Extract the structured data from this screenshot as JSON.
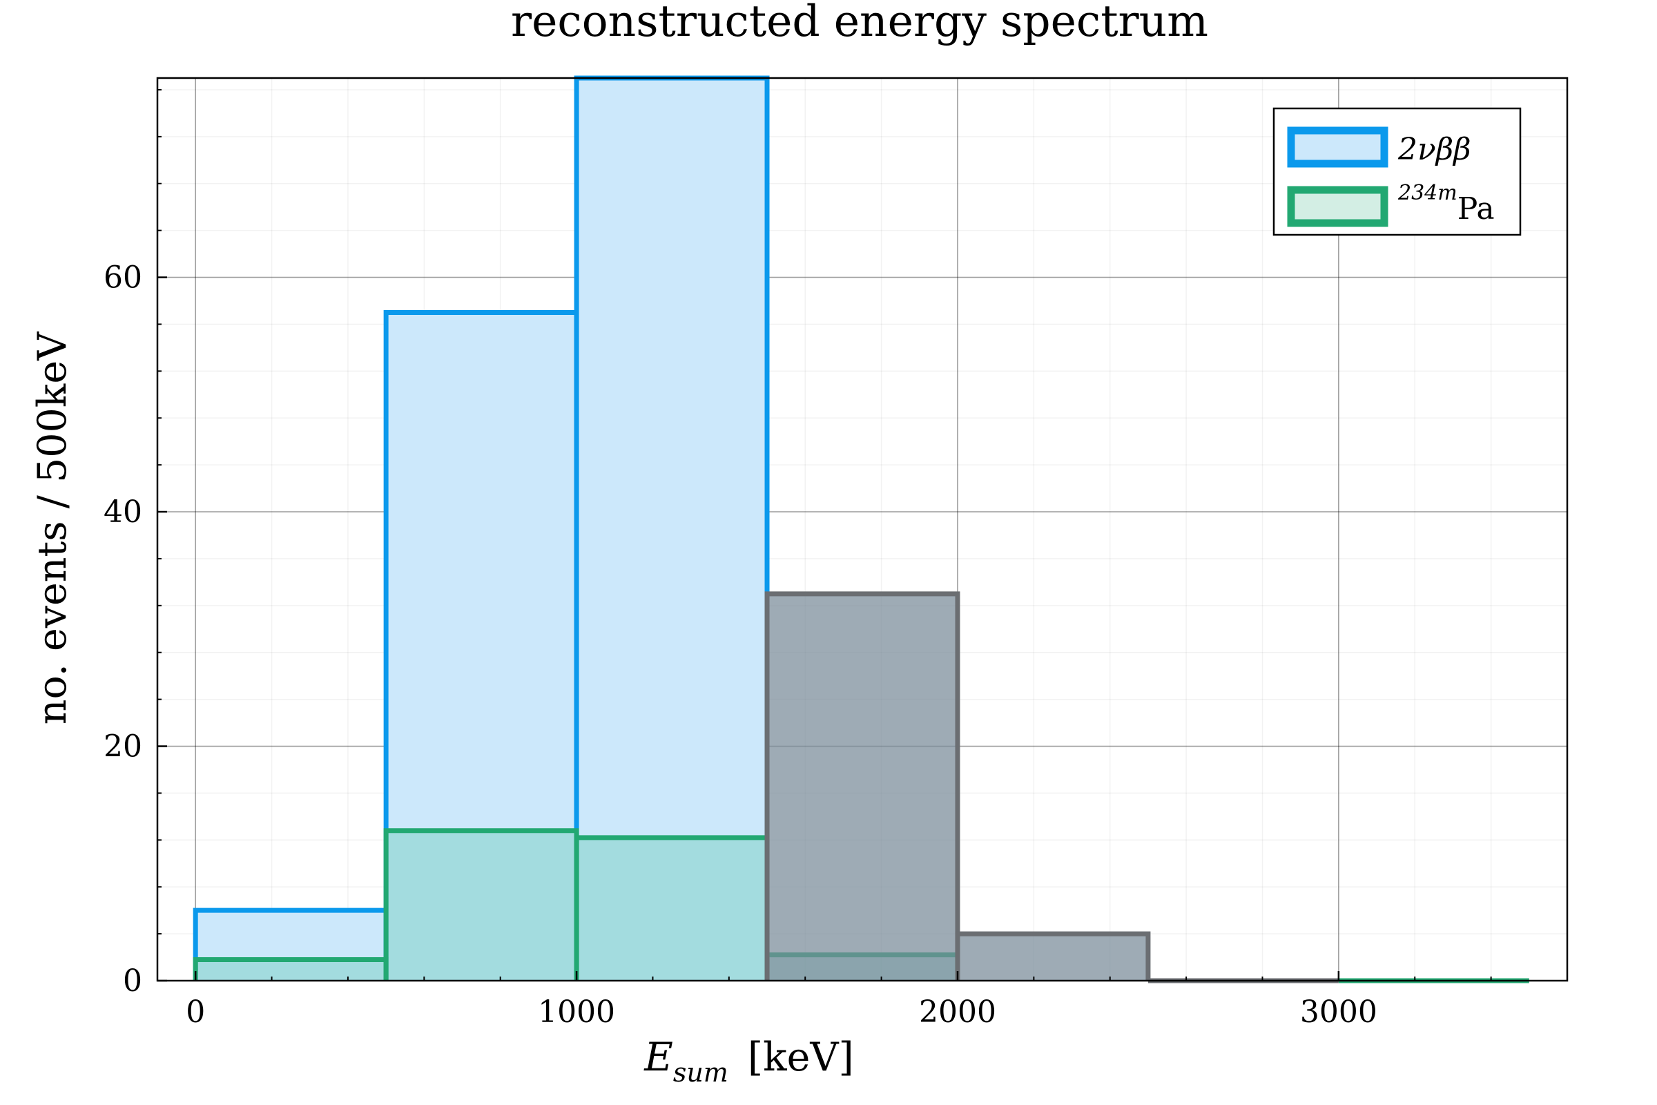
{
  "chart_data": {
    "type": "bar",
    "title": "reconstructed energy spectrum",
    "xlabel": {
      "main": "E",
      "sub": "sum",
      "unit": "[keV]"
    },
    "ylabel": "no. events  /  500keV",
    "xlim": [
      -100,
      3600
    ],
    "ylim": [
      0,
      77
    ],
    "xticks": [
      "0",
      "1000",
      "2000",
      "3000"
    ],
    "yticks": [
      "0",
      "20",
      "40",
      "60"
    ],
    "bin_width": 500,
    "grid": true,
    "legend_position": "top-right",
    "legend": [
      {
        "base": "2νββ",
        "sup": "",
        "color": "#0b99ec",
        "fill": "#cce8fb"
      },
      {
        "base": "Pa",
        "sup": "234m",
        "color": "#22a872",
        "fill": "#d3eee4"
      }
    ],
    "series": [
      {
        "name": "2νββ",
        "color": "#0b99ec",
        "fill": "#cce8fb",
        "bins": [
          {
            "x0": 0,
            "x1": 500,
            "y": 6
          },
          {
            "x0": 500,
            "x1": 1000,
            "y": 57
          },
          {
            "x0": 1000,
            "x1": 1500,
            "y": 77
          }
        ]
      },
      {
        "name": "234mPa",
        "color": "#22a872",
        "fill": "rgba(130, 210, 200, 0.55)",
        "bins": [
          {
            "x0": 0,
            "x1": 500,
            "y": 1.8
          },
          {
            "x0": 500,
            "x1": 1000,
            "y": 12.8
          },
          {
            "x0": 1000,
            "x1": 1500,
            "y": 12.2
          },
          {
            "x0": 1500,
            "x1": 2000,
            "y": 2.2
          },
          {
            "x0": 3000,
            "x1": 3500,
            "y": 0
          }
        ]
      },
      {
        "name": "",
        "color": "#6b6e72",
        "fill": "rgba(120, 138, 152, 0.72)",
        "bins": [
          {
            "x0": 1500,
            "x1": 2000,
            "y": 33
          },
          {
            "x0": 2000,
            "x1": 2500,
            "y": 4
          },
          {
            "x0": 2500,
            "x1": 3000,
            "y": 0
          }
        ]
      }
    ]
  }
}
